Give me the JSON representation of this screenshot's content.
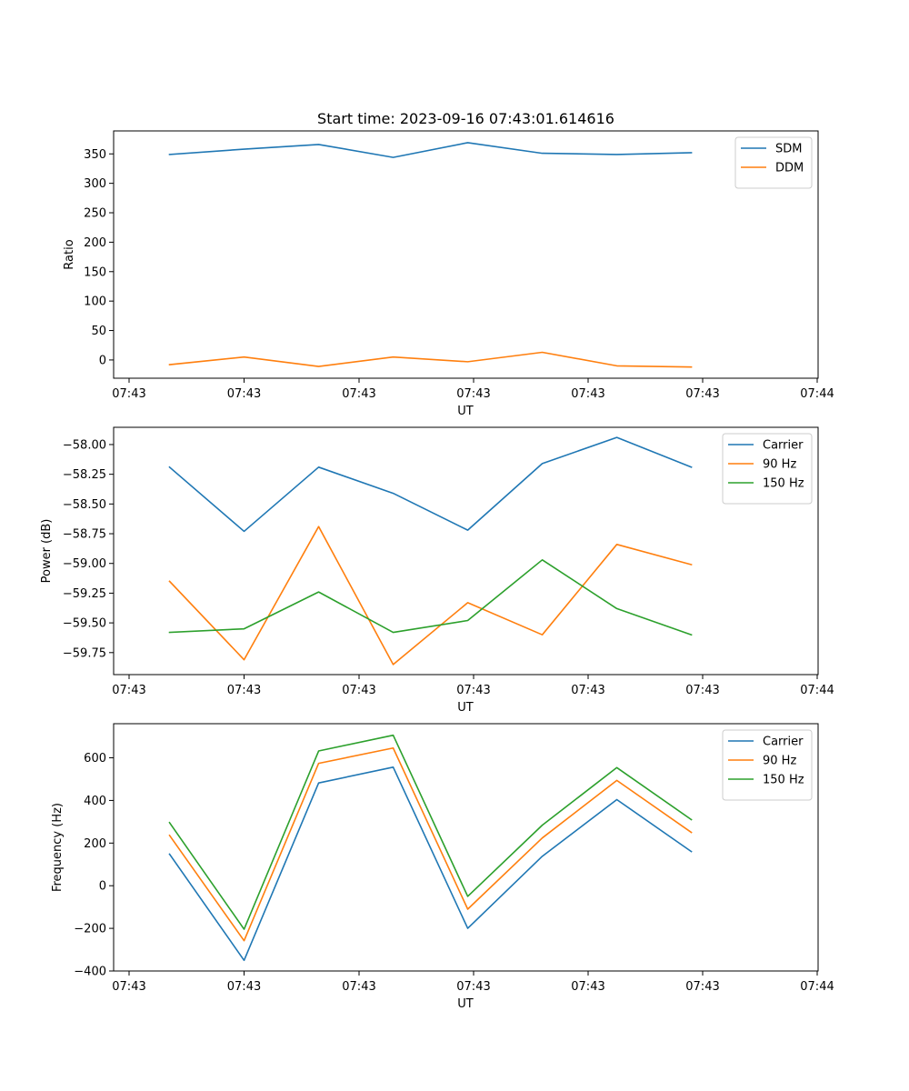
{
  "figure_title": "Start time: 2023-09-16 07:43:01.614616",
  "chart_data": [
    {
      "type": "line",
      "title": "Start time: 2023-09-16 07:43:01.614616",
      "xlabel": "UT",
      "ylabel": "Ratio",
      "x_tick_labels": [
        "07:43",
        "07:43",
        "07:43",
        "07:43",
        "07:43",
        "07:43",
        "07:44"
      ],
      "x_sample_index": [
        0,
        1,
        2,
        3,
        4,
        5,
        6,
        7
      ],
      "xlim": [
        -0.75,
        8.7
      ],
      "ylim": [
        -31,
        389
      ],
      "y_ticks": [
        0,
        50,
        100,
        150,
        200,
        250,
        300,
        350
      ],
      "y_tick_labels": [
        "0",
        "50",
        "100",
        "150",
        "200",
        "250",
        "300",
        "350"
      ],
      "legend_position": "top-right",
      "series": [
        {
          "name": "SDM",
          "color": "#1f77b4",
          "values": [
            349,
            358,
            366,
            344,
            369,
            351,
            349,
            352
          ]
        },
        {
          "name": "DDM",
          "color": "#ff7f0e",
          "values": [
            -8,
            5,
            -11,
            5,
            -3,
            13,
            -10,
            -12
          ]
        }
      ]
    },
    {
      "type": "line",
      "title": "",
      "xlabel": "UT",
      "ylabel": "Power (dB)",
      "x_tick_labels": [
        "07:43",
        "07:43",
        "07:43",
        "07:43",
        "07:43",
        "07:43",
        "07:44"
      ],
      "x_sample_index": [
        0,
        1,
        2,
        3,
        4,
        5,
        6,
        7
      ],
      "xlim": [
        -0.75,
        8.7
      ],
      "ylim": [
        -59.935,
        -57.855
      ],
      "y_ticks": [
        -59.75,
        -59.5,
        -59.25,
        -59.0,
        -58.75,
        -58.5,
        -58.25,
        -58.0
      ],
      "y_tick_labels": [
        "−59.75",
        "−59.50",
        "−59.25",
        "−59.00",
        "−58.75",
        "−58.50",
        "−58.25",
        "−58.00"
      ],
      "legend_position": "top-right",
      "series": [
        {
          "name": "Carrier",
          "color": "#1f77b4",
          "values": [
            -58.19,
            -58.73,
            -58.19,
            -58.41,
            -58.72,
            -58.16,
            -57.94,
            -58.19
          ]
        },
        {
          "name": "90 Hz",
          "color": "#ff7f0e",
          "values": [
            -59.15,
            -59.81,
            -58.69,
            -59.85,
            -59.33,
            -59.6,
            -58.84,
            -59.01
          ]
        },
        {
          "name": "150 Hz",
          "color": "#2ca02c",
          "values": [
            -59.58,
            -59.55,
            -59.24,
            -59.58,
            -59.48,
            -58.97,
            -59.38,
            -59.6
          ]
        }
      ]
    },
    {
      "type": "line",
      "title": "",
      "xlabel": "UT",
      "ylabel": "Frequency (Hz)",
      "x_tick_labels": [
        "07:43",
        "07:43",
        "07:43",
        "07:43",
        "07:43",
        "07:43",
        "07:44"
      ],
      "x_sample_index": [
        0,
        1,
        2,
        3,
        4,
        5,
        6,
        7
      ],
      "xlim": [
        -0.75,
        8.7
      ],
      "ylim": [
        -400,
        760
      ],
      "y_ticks": [
        -400,
        -200,
        0,
        200,
        400,
        600
      ],
      "y_tick_labels": [
        "−400",
        "−200",
        "0",
        "200",
        "400",
        "600"
      ],
      "legend_position": "top-right",
      "series": [
        {
          "name": "Carrier",
          "color": "#1f77b4",
          "values": [
            148,
            -350,
            482,
            556,
            -200,
            138,
            404,
            160
          ]
        },
        {
          "name": "90 Hz",
          "color": "#ff7f0e",
          "values": [
            236,
            -258,
            574,
            646,
            -110,
            224,
            494,
            250
          ]
        },
        {
          "name": "150 Hz",
          "color": "#2ca02c",
          "values": [
            296,
            -204,
            632,
            706,
            -50,
            284,
            554,
            310
          ]
        }
      ]
    }
  ]
}
